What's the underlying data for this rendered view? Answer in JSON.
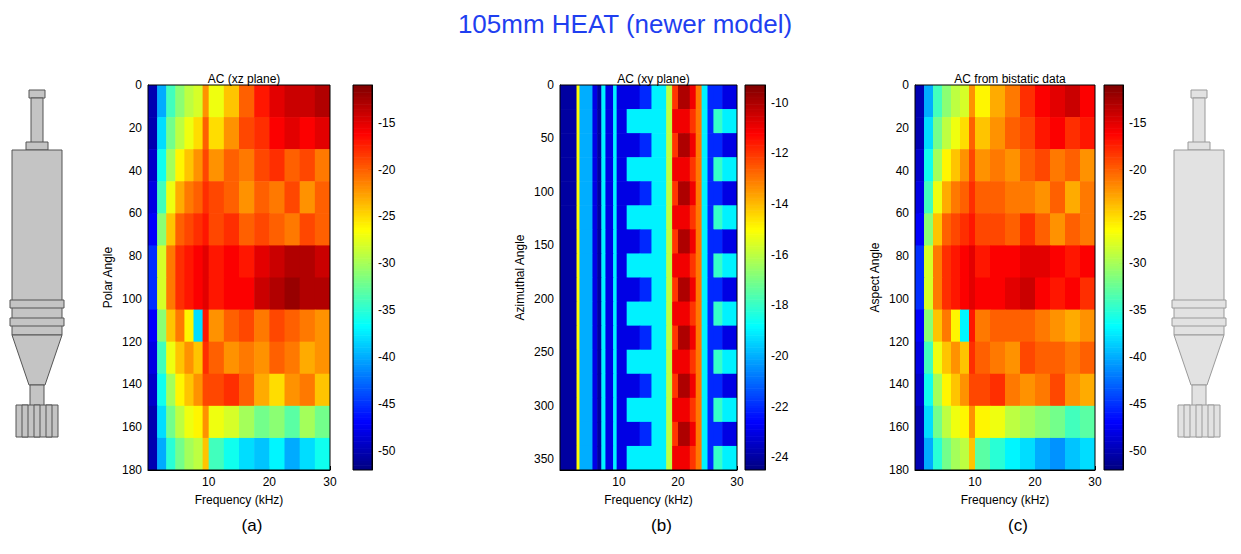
{
  "title": "105mm HEAT (newer model)",
  "chart_data": [
    {
      "type": "heatmap",
      "title": "AC (xz plane)",
      "panel_label": "(a)",
      "x_label": "Frequency (kHz)",
      "y_label": "Polar Angle",
      "xlim": [
        0,
        30
      ],
      "xticks": [
        10,
        20,
        30
      ],
      "ylim": [
        0,
        180
      ],
      "yticks": [
        0,
        20,
        40,
        60,
        80,
        100,
        120,
        140,
        160,
        180
      ],
      "x_bins": [
        0,
        1.5,
        3,
        4.5,
        6,
        7.5,
        9,
        10,
        12.5,
        15,
        17.5,
        20,
        22.5,
        25,
        27.5,
        30
      ],
      "y_bins": [
        0,
        15,
        30,
        45,
        60,
        75,
        90,
        105,
        120,
        135,
        150,
        165,
        180
      ],
      "cells": [
        [
          -50,
          -40,
          -34,
          -31,
          -29,
          -28,
          -22,
          -27,
          -24,
          -20,
          -17,
          -15,
          -14,
          -14,
          -13
        ],
        [
          -50,
          -38,
          -32,
          -29,
          -27,
          -25,
          -20,
          -25,
          -22,
          -19,
          -18,
          -16,
          -15,
          -16,
          -15
        ],
        [
          -49,
          -36,
          -30,
          -26,
          -24,
          -22,
          -19,
          -22,
          -20,
          -21,
          -19,
          -18,
          -20,
          -19,
          -21
        ],
        [
          -48,
          -34,
          -27,
          -23,
          -21,
          -20,
          -18,
          -19,
          -20,
          -22,
          -20,
          -21,
          -19,
          -22,
          -20
        ],
        [
          -47,
          -31,
          -24,
          -20,
          -19,
          -18,
          -17,
          -19,
          -18,
          -20,
          -19,
          -20,
          -21,
          -19,
          -20
        ],
        [
          -45,
          -28,
          -21,
          -18,
          -17,
          -16,
          -15,
          -17,
          -16,
          -17,
          -15,
          -14,
          -13,
          -13,
          -14
        ],
        [
          -45,
          -28,
          -21,
          -18,
          -17,
          -16,
          -15,
          -17,
          -16,
          -16,
          -14,
          -13,
          -12,
          -13,
          -13
        ],
        [
          -47,
          -31,
          -24,
          -21,
          -26,
          -38,
          -17,
          -22,
          -20,
          -19,
          -21,
          -19,
          -20,
          -21,
          -22
        ],
        [
          -48,
          -34,
          -27,
          -24,
          -22,
          -24,
          -18,
          -20,
          -22,
          -21,
          -22,
          -20,
          -21,
          -23,
          -22
        ],
        [
          -49,
          -36,
          -30,
          -26,
          -24,
          -22,
          -19,
          -19,
          -18,
          -20,
          -23,
          -25,
          -22,
          -21,
          -24
        ],
        [
          -50,
          -38,
          -32,
          -29,
          -27,
          -26,
          -22,
          -27,
          -28,
          -30,
          -32,
          -31,
          -33,
          -30,
          -32
        ],
        [
          -50,
          -40,
          -35,
          -32,
          -30,
          -29,
          -24,
          -34,
          -36,
          -38,
          -39,
          -37,
          -40,
          -38,
          -36
        ]
      ],
      "colorbar": {
        "range": [
          -52,
          -11
        ],
        "ticks": [
          -15,
          -20,
          -25,
          -30,
          -35,
          -40,
          -45,
          -50
        ]
      }
    },
    {
      "type": "heatmap",
      "title": "AC (xy plane)",
      "panel_label": "(b)",
      "x_label": "Frequency (kHz)",
      "y_label": "Azimuthal Angle",
      "xlim": [
        0,
        30
      ],
      "xticks": [
        10,
        20,
        30
      ],
      "ylim": [
        0,
        360
      ],
      "yticks": [
        0,
        50,
        100,
        150,
        200,
        250,
        300,
        350
      ],
      "x_bins": [
        0,
        2.8,
        3.3,
        5.5,
        6.3,
        7,
        7.7,
        9,
        9.6,
        11.3,
        13.5,
        15.5,
        18,
        19,
        20,
        21,
        22,
        23,
        24,
        25,
        26,
        27.5,
        30
      ],
      "y_bins": [
        0,
        22.5,
        45,
        67.5,
        90,
        112.5,
        135,
        157.5,
        180,
        202.5,
        225,
        247.5,
        270,
        292.5,
        315,
        337.5,
        360
      ],
      "cells": [
        [
          -24,
          -15,
          -20,
          -23,
          -24,
          -19,
          -23,
          -19,
          -23,
          -23,
          -22,
          -19,
          -16,
          -12,
          -10,
          -10,
          -11,
          -13,
          -19,
          -22,
          -22,
          -23
        ],
        [
          -24,
          -15,
          -20,
          -23,
          -24,
          -19,
          -23,
          -19,
          -23,
          -19,
          -19,
          -19,
          -16,
          -11,
          -11,
          -11,
          -12,
          -13,
          -19,
          -22,
          -18,
          -19
        ],
        [
          -24,
          -15,
          -20,
          -23,
          -24,
          -19,
          -23,
          -19,
          -23,
          -23,
          -22,
          -19,
          -16,
          -12,
          -10,
          -10,
          -11,
          -13,
          -19,
          -22,
          -22,
          -23
        ],
        [
          -24,
          -15,
          -20,
          -23,
          -24,
          -19,
          -23,
          -19,
          -23,
          -19,
          -19,
          -19,
          -16,
          -11,
          -11,
          -11,
          -12,
          -13,
          -19,
          -22,
          -18,
          -19
        ],
        [
          -24,
          -15,
          -20,
          -23,
          -24,
          -19,
          -23,
          -19,
          -23,
          -23,
          -22,
          -19,
          -16,
          -12,
          -10,
          -10,
          -11,
          -13,
          -19,
          -22,
          -22,
          -23
        ],
        [
          -24,
          -15,
          -20,
          -23,
          -24,
          -19,
          -23,
          -19,
          -23,
          -19,
          -19,
          -19,
          -16,
          -11,
          -11,
          -11,
          -12,
          -13,
          -19,
          -22,
          -18,
          -19
        ],
        [
          -24,
          -15,
          -20,
          -23,
          -24,
          -19,
          -23,
          -19,
          -23,
          -23,
          -22,
          -19,
          -16,
          -12,
          -10,
          -10,
          -11,
          -13,
          -19,
          -22,
          -22,
          -23
        ],
        [
          -24,
          -15,
          -20,
          -23,
          -24,
          -19,
          -23,
          -19,
          -23,
          -19,
          -19,
          -19,
          -16,
          -11,
          -11,
          -11,
          -12,
          -13,
          -19,
          -22,
          -18,
          -19
        ],
        [
          -24,
          -15,
          -20,
          -23,
          -24,
          -19,
          -23,
          -19,
          -23,
          -23,
          -22,
          -19,
          -16,
          -12,
          -10,
          -10,
          -11,
          -13,
          -19,
          -22,
          -22,
          -23
        ],
        [
          -24,
          -15,
          -20,
          -23,
          -24,
          -19,
          -23,
          -19,
          -23,
          -19,
          -19,
          -19,
          -16,
          -11,
          -11,
          -11,
          -12,
          -13,
          -19,
          -22,
          -18,
          -19
        ],
        [
          -24,
          -15,
          -20,
          -23,
          -24,
          -19,
          -23,
          -19,
          -23,
          -23,
          -22,
          -19,
          -16,
          -12,
          -10,
          -10,
          -11,
          -13,
          -19,
          -22,
          -22,
          -23
        ],
        [
          -24,
          -15,
          -20,
          -23,
          -24,
          -19,
          -23,
          -19,
          -23,
          -19,
          -19,
          -19,
          -16,
          -11,
          -11,
          -11,
          -12,
          -13,
          -19,
          -22,
          -18,
          -19
        ],
        [
          -24,
          -15,
          -20,
          -23,
          -24,
          -19,
          -23,
          -19,
          -23,
          -23,
          -22,
          -19,
          -16,
          -12,
          -10,
          -10,
          -11,
          -13,
          -19,
          -22,
          -22,
          -23
        ],
        [
          -24,
          -15,
          -20,
          -23,
          -24,
          -19,
          -23,
          -19,
          -23,
          -19,
          -19,
          -19,
          -16,
          -11,
          -11,
          -11,
          -12,
          -13,
          -19,
          -22,
          -18,
          -19
        ],
        [
          -24,
          -15,
          -20,
          -23,
          -24,
          -19,
          -23,
          -19,
          -23,
          -23,
          -22,
          -19,
          -16,
          -12,
          -10,
          -10,
          -11,
          -13,
          -19,
          -22,
          -22,
          -23
        ],
        [
          -24,
          -15,
          -20,
          -23,
          -24,
          -19,
          -23,
          -19,
          -23,
          -19,
          -19,
          -19,
          -16,
          -11,
          -11,
          -11,
          -12,
          -13,
          -19,
          -22,
          -18,
          -19
        ]
      ],
      "colorbar": {
        "range": [
          -24.5,
          -9.3
        ],
        "ticks": [
          -10,
          -12,
          -14,
          -16,
          -18,
          -20,
          -22,
          -24
        ]
      }
    },
    {
      "type": "heatmap",
      "title": "AC from bistatic data",
      "panel_label": "(c)",
      "x_label": "Frequency (kHz)",
      "y_label": "Aspect Angle",
      "xlim": [
        0,
        30
      ],
      "xticks": [
        10,
        20,
        30
      ],
      "ylim": [
        0,
        180
      ],
      "yticks": [
        0,
        20,
        40,
        60,
        80,
        100,
        120,
        140,
        160,
        180
      ],
      "x_bins": [
        0,
        1.5,
        3,
        4.5,
        6,
        7.5,
        9,
        10,
        12.5,
        15,
        17.5,
        20,
        22.5,
        25,
        27.5,
        30
      ],
      "y_bins": [
        0,
        15,
        30,
        45,
        60,
        75,
        90,
        105,
        120,
        135,
        150,
        165,
        180
      ],
      "cells": [
        [
          -50,
          -40,
          -34,
          -31,
          -29,
          -28,
          -22,
          -26,
          -23,
          -21,
          -18,
          -16,
          -15,
          -14,
          -16
        ],
        [
          -50,
          -38,
          -32,
          -29,
          -27,
          -25,
          -20,
          -24,
          -22,
          -20,
          -19,
          -17,
          -16,
          -18,
          -17
        ],
        [
          -49,
          -36,
          -30,
          -26,
          -24,
          -22,
          -19,
          -22,
          -21,
          -22,
          -20,
          -19,
          -21,
          -20,
          -22
        ],
        [
          -48,
          -34,
          -27,
          -23,
          -21,
          -20,
          -18,
          -20,
          -20,
          -21,
          -21,
          -22,
          -20,
          -23,
          -21
        ],
        [
          -47,
          -31,
          -24,
          -20,
          -19,
          -18,
          -17,
          -19,
          -19,
          -20,
          -18,
          -20,
          -22,
          -20,
          -21
        ],
        [
          -45,
          -28,
          -21,
          -18,
          -17,
          -16,
          -15,
          -17,
          -16,
          -16,
          -15,
          -15,
          -16,
          -17,
          -16
        ],
        [
          -45,
          -28,
          -21,
          -18,
          -17,
          -16,
          -15,
          -16,
          -16,
          -15,
          -14,
          -16,
          -17,
          -16,
          -18
        ],
        [
          -47,
          -31,
          -24,
          -21,
          -26,
          -37,
          -17,
          -21,
          -20,
          -20,
          -20,
          -21,
          -22,
          -23,
          -22
        ],
        [
          -48,
          -34,
          -27,
          -24,
          -22,
          -24,
          -18,
          -20,
          -21,
          -22,
          -19,
          -20,
          -20,
          -21,
          -20
        ],
        [
          -49,
          -36,
          -30,
          -26,
          -24,
          -22,
          -19,
          -19,
          -18,
          -21,
          -22,
          -21,
          -19,
          -22,
          -23
        ],
        [
          -50,
          -38,
          -32,
          -29,
          -27,
          -26,
          -22,
          -26,
          -27,
          -29,
          -30,
          -31,
          -32,
          -34,
          -33
        ],
        [
          -50,
          -40,
          -35,
          -32,
          -30,
          -29,
          -24,
          -33,
          -35,
          -37,
          -38,
          -40,
          -41,
          -39,
          -38
        ]
      ],
      "colorbar": {
        "range": [
          -52,
          -11
        ],
        "ticks": [
          -15,
          -20,
          -25,
          -30,
          -35,
          -40,
          -45,
          -50
        ]
      }
    }
  ]
}
